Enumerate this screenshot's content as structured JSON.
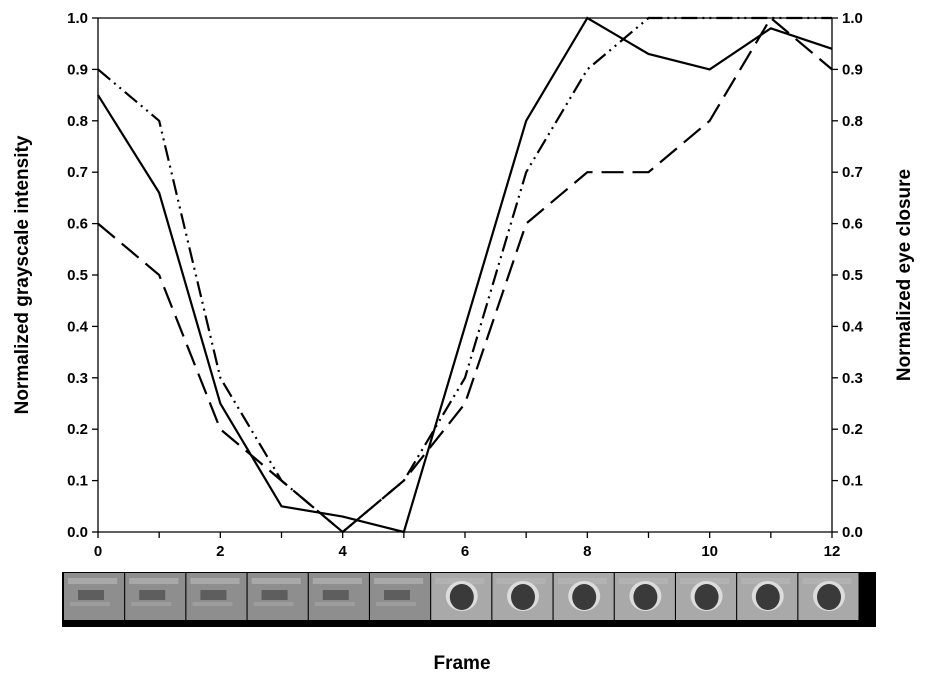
{
  "chart_data": {
    "type": "line",
    "title": "",
    "xlabel": "Frame",
    "ylabel_left": "Normalized grayscale intensity",
    "ylabel_right": "Normalized eye closure",
    "xlim": [
      0,
      12
    ],
    "ylim": [
      0,
      1
    ],
    "x_ticks": [
      "0",
      "2",
      "4",
      "6",
      "8",
      "10",
      "12"
    ],
    "y_ticks": [
      "0.0",
      "0.1",
      "0.2",
      "0.3",
      "0.4",
      "0.5",
      "0.6",
      "0.7",
      "0.8",
      "0.9",
      "1.0"
    ],
    "grid": false,
    "legend": "none",
    "series": [
      {
        "style": "solid",
        "color": "#000000",
        "x": [
          0,
          1,
          2,
          3,
          4,
          5,
          6,
          7,
          8,
          9,
          10,
          11,
          12
        ],
        "y": [
          0.85,
          0.66,
          0.25,
          0.05,
          0.03,
          0.0,
          0.4,
          0.8,
          1.0,
          0.93,
          0.9,
          0.98,
          0.94
        ]
      },
      {
        "style": "long-dash",
        "color": "#000000",
        "x": [
          0,
          1,
          2,
          3,
          4,
          5,
          6,
          7,
          8,
          9,
          10,
          11,
          12
        ],
        "y": [
          0.6,
          0.5,
          0.2,
          0.1,
          0.0,
          0.1,
          0.25,
          0.6,
          0.7,
          0.7,
          0.8,
          1.0,
          0.9
        ]
      },
      {
        "style": "dash-dot-dot",
        "color": "#000000",
        "x": [
          0,
          1,
          2,
          3,
          4,
          5,
          6,
          7,
          8,
          9,
          10,
          11,
          12
        ],
        "y": [
          0.9,
          0.8,
          0.3,
          0.1,
          0.0,
          0.1,
          0.3,
          0.7,
          0.9,
          1.0,
          1.0,
          1.0,
          1.0
        ]
      }
    ],
    "frame_strip": {
      "count": 13,
      "closed_frames": [
        0,
        1,
        2,
        3,
        4,
        5
      ],
      "open_frames": [
        6,
        7,
        8,
        9,
        10,
        11,
        12
      ]
    }
  }
}
